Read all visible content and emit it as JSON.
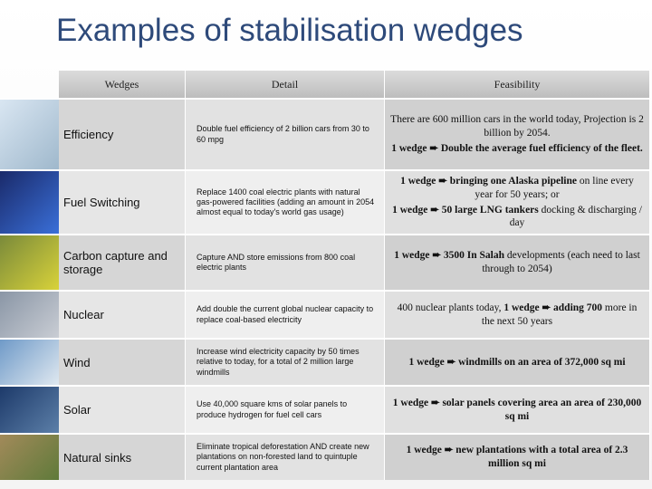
{
  "title": "Examples of stabilisation wedges",
  "table": {
    "headers": [
      "Wedges",
      "Detail",
      "Feasibility"
    ],
    "rows": [
      {
        "name": "Efficiency",
        "detail": "Double fuel efficiency of 2 billion cars from 30 to 60 mpg",
        "feasibility": [
          [
            {
              "text": "There are 600 million cars in the world today, Projection is 2 billion by 2054.",
              "bold": false
            }
          ],
          [
            {
              "text": "1 wedge ➨ Double the average fuel efficiency of the fleet.",
              "bold": true
            }
          ]
        ]
      },
      {
        "name": "Fuel Switching",
        "detail": "Replace 1400 coal electric plants with natural gas-powered facilities (adding an amount in 2054 almost equal to today's world gas usage)",
        "feasibility": [
          [
            {
              "text": "1 wedge ➨ bringing one Alaska pipeline",
              "bold": true
            },
            {
              "text": " on line every year for 50 years; or",
              "bold": false
            }
          ],
          [
            {
              "text": "1 wedge ➨ 50 large LNG tankers",
              "bold": true
            },
            {
              "text": " docking & discharging / day",
              "bold": false
            }
          ]
        ]
      },
      {
        "name": "Carbon capture and storage",
        "detail": "Capture AND store emissions from 800 coal electric plants",
        "feasibility": [
          [
            {
              "text": "1 wedge ➨ 3500 In Salah",
              "bold": true
            },
            {
              "text": " developments (each need to last through to 2054)",
              "bold": false
            }
          ]
        ]
      },
      {
        "name": "Nuclear",
        "detail": "Add double the current global nuclear capacity to replace coal-based electricity",
        "feasibility": [
          [
            {
              "text": "400 nuclear plants today, ",
              "bold": false
            },
            {
              "text": "1 wedge ➨ adding 700",
              "bold": true
            },
            {
              "text": " more in the next 50 years",
              "bold": false
            }
          ]
        ]
      },
      {
        "name": "Wind",
        "detail": "Increase wind electricity capacity by 50 times relative to today, for a total of 2 million large windmills",
        "feasibility": [
          [
            {
              "text": "1 wedge ➨ windmills on an area of 372,000 sq mi",
              "bold": true
            }
          ]
        ]
      },
      {
        "name": "Solar",
        "detail": "Use 40,000 square kms of solar panels to produce hydrogen for fuel cell cars",
        "feasibility": [
          [
            {
              "text": "1 wedge ➨ solar panels covering area an area of 230,000 sq mi",
              "bold": true
            }
          ]
        ]
      },
      {
        "name": "Natural sinks",
        "detail": "Eliminate tropical deforestation AND create new plantations on non-forested land to quintuple current plantation area",
        "feasibility": [
          [
            {
              "text": "1 wedge ➨ new plantations with a total area of 2.3 million sq mi",
              "bold": true
            }
          ]
        ]
      }
    ]
  }
}
